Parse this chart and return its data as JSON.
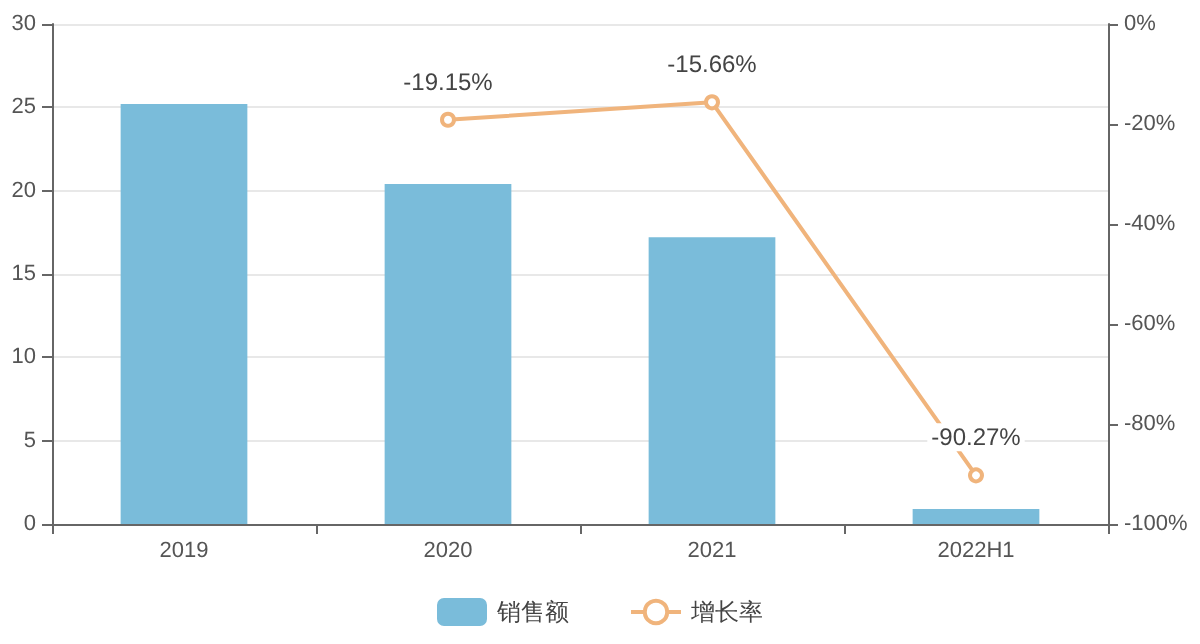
{
  "chart_data": {
    "type": "bar",
    "categories": [
      "2019",
      "2020",
      "2021",
      "2022H1"
    ],
    "series": [
      {
        "name": "销售额",
        "color": "#7abcda",
        "values": [
          25.2,
          20.4,
          17.2,
          0.9
        ]
      },
      {
        "name": "增长率",
        "type": "line",
        "axis": "y2",
        "color": "#f0b47c",
        "values": [
          null,
          -19.15,
          -15.66,
          -90.27
        ],
        "value_labels": [
          null,
          "-19.15%",
          "-15.66%",
          "-90.27%"
        ]
      }
    ],
    "ylim": [
      0,
      30
    ],
    "yticks": [
      0,
      5,
      10,
      15,
      20,
      25,
      30
    ],
    "y2lim": [
      -100,
      0
    ],
    "y2ticks": [
      {
        "value": -100,
        "label": "-100%"
      },
      {
        "value": -80,
        "label": "-80%"
      },
      {
        "value": -60,
        "label": "-60%"
      },
      {
        "value": -40,
        "label": "-40%"
      },
      {
        "value": -20,
        "label": "-20%"
      },
      {
        "value": 0,
        "label": "0%"
      }
    ],
    "grid": "y",
    "legend": "bottom",
    "marker": "circle",
    "line_style": "solid"
  }
}
